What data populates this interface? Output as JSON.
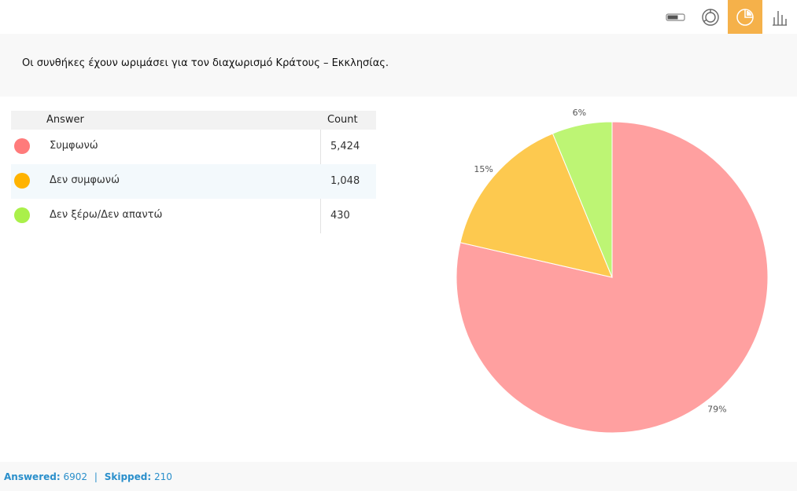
{
  "toolbar": {
    "buttons": [
      {
        "icon": "toggle-icon",
        "active": false
      },
      {
        "icon": "donut-chart-icon",
        "active": false
      },
      {
        "icon": "pie-chart-icon",
        "active": true
      },
      {
        "icon": "bar-chart-icon",
        "active": false
      }
    ]
  },
  "question": {
    "text": "Οι συνθήκες έχουν ωριμάσει για τον διαχωρισμό Κράτους – Εκκλησίας."
  },
  "table": {
    "header_answer": "Answer",
    "header_count": "Count",
    "rows": [
      {
        "label": "Συμφωνώ",
        "count": "5,424",
        "color": "#ff7b7b"
      },
      {
        "label": "Δεν συμφωνώ",
        "count": "1,048",
        "color": "#ffb300"
      },
      {
        "label": "Δεν ξέρω/Δεν απαντώ",
        "count": "430",
        "color": "#aaf04a"
      }
    ]
  },
  "chart_data": {
    "type": "pie",
    "categories": [
      "Συμφωνώ",
      "Δεν συμφωνώ",
      "Δεν ξέρω/Δεν απαντώ"
    ],
    "values": [
      5424,
      1048,
      430
    ],
    "labels": [
      "79%",
      "15%",
      "6%"
    ],
    "colors": [
      "#ffa0a0",
      "#fdc94f",
      "#bdf574"
    ]
  },
  "footer": {
    "answered_label": "Answered:",
    "answered_value": "6902",
    "separator": "|",
    "skipped_label": "Skipped:",
    "skipped_value": "210"
  }
}
